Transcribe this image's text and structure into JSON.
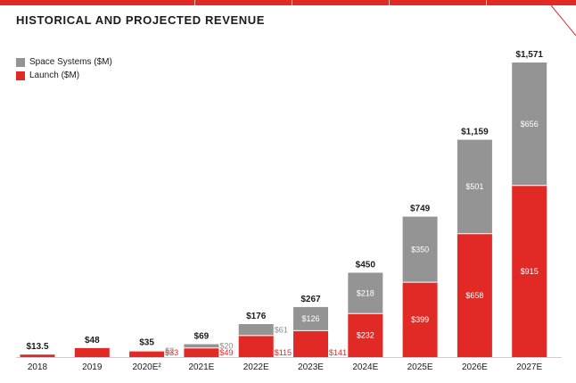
{
  "chart_data": {
    "type": "bar",
    "stacked": true,
    "title": "HISTORICAL AND PROJECTED REVENUE",
    "categories": [
      "2018",
      "2019",
      "2020E²",
      "2021E",
      "2022E",
      "2023E",
      "2024E",
      "2025E",
      "2026E",
      "2027E"
    ],
    "series": [
      {
        "name": "Launch ($M)",
        "color": "#e12a26",
        "values": [
          13.5,
          48,
          33,
          49,
          115,
          141,
          232,
          399,
          658,
          915
        ],
        "labels": [
          "",
          "",
          "$33",
          "$49",
          "$115",
          "$141",
          "$232",
          "$399",
          "$658",
          "$915"
        ]
      },
      {
        "name": "Space Systems ($M)",
        "color": "#949494",
        "values": [
          0,
          0,
          2,
          20,
          61,
          126,
          218,
          350,
          501,
          656
        ],
        "labels": [
          "",
          "",
          "$2",
          "$20",
          "$61",
          "$126",
          "$218",
          "$350",
          "$501",
          "$656"
        ]
      }
    ],
    "totals": [
      "$13.5",
      "$48",
      "$35",
      "$69",
      "$176",
      "$267",
      "$450",
      "$749",
      "$1,159",
      "$1,571"
    ],
    "ylim": [
      0,
      1650
    ],
    "grid": false,
    "legend_position": "top-left"
  }
}
